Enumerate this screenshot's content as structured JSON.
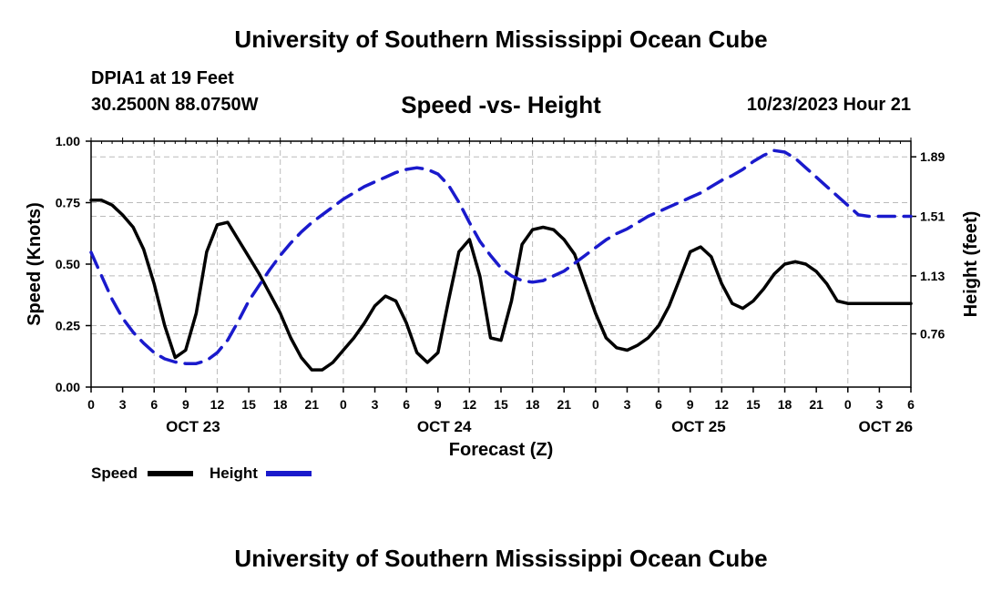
{
  "header": {
    "title": "University of Southern Mississippi Ocean Cube",
    "station": "DPIA1 at 19 Feet",
    "coords": "30.2500N  88.0750W",
    "subtitle": "Speed -vs- Height",
    "datetime": "10/23/2023 Hour 21"
  },
  "footer": {
    "title": "University of Southern Mississippi Ocean Cube"
  },
  "chart_data": {
    "type": "line",
    "xlabel": "Forecast (Z)",
    "ylabel_left": "Speed (Knots)",
    "ylabel_right": "Height (feet)",
    "x_hours_range": [
      0,
      78
    ],
    "ylim_left": [
      0.0,
      1.0
    ],
    "ylim_right": [
      0.42,
      1.99
    ],
    "left_ticks": [
      "0.00",
      "0.25",
      "0.50",
      "0.75",
      "1.00"
    ],
    "right_ticks": [
      "0.76",
      "1.13",
      "1.51",
      "1.89"
    ],
    "x_tick_labels": [
      "0",
      "3",
      "6",
      "9",
      "12",
      "15",
      "18",
      "21",
      "0",
      "3",
      "6",
      "9",
      "12",
      "15",
      "18",
      "21",
      "0",
      "3",
      "6",
      "9",
      "12",
      "15",
      "18",
      "21",
      "0",
      "3",
      "6"
    ],
    "date_labels": [
      {
        "label": "OCT 23",
        "hour": 9.7
      },
      {
        "label": "OCT 24",
        "hour": 33.6
      },
      {
        "label": "OCT 25",
        "hour": 57.8
      },
      {
        "label": "OCT 26",
        "hour": 75.6
      }
    ],
    "legend": [
      {
        "name": "Speed",
        "color": "#000000",
        "style": "solid"
      },
      {
        "name": "Height",
        "color": "#1a1acc",
        "style": "dashed"
      }
    ],
    "series": [
      {
        "name": "Speed",
        "color": "#000000",
        "dashed": false,
        "axis": "left",
        "x": [
          0,
          1,
          2,
          3,
          4,
          5,
          6,
          7,
          8,
          9,
          10,
          11,
          12,
          13,
          14,
          15,
          16,
          17,
          18,
          19,
          20,
          21,
          22,
          23,
          24,
          25,
          26,
          27,
          28,
          29,
          30,
          31,
          32,
          33,
          34,
          35,
          36,
          37,
          38,
          39,
          40,
          41,
          42,
          43,
          44,
          45,
          46,
          47,
          48,
          49,
          50,
          51,
          52,
          53,
          54,
          55,
          56,
          57,
          58,
          59,
          60,
          61,
          62,
          63,
          64,
          65,
          66,
          67,
          68,
          69,
          70,
          71,
          72,
          73,
          74,
          75,
          76,
          77,
          78
        ],
        "values": [
          0.76,
          0.76,
          0.74,
          0.7,
          0.65,
          0.56,
          0.42,
          0.25,
          0.12,
          0.15,
          0.3,
          0.55,
          0.66,
          0.67,
          0.6,
          0.53,
          0.46,
          0.38,
          0.3,
          0.2,
          0.12,
          0.07,
          0.07,
          0.1,
          0.15,
          0.2,
          0.26,
          0.33,
          0.37,
          0.35,
          0.26,
          0.14,
          0.1,
          0.14,
          0.35,
          0.55,
          0.6,
          0.45,
          0.2,
          0.19,
          0.35,
          0.58,
          0.64,
          0.65,
          0.64,
          0.6,
          0.54,
          0.42,
          0.3,
          0.2,
          0.16,
          0.15,
          0.17,
          0.2,
          0.25,
          0.33,
          0.44,
          0.55,
          0.57,
          0.53,
          0.42,
          0.34,
          0.32,
          0.35,
          0.4,
          0.46,
          0.5,
          0.51,
          0.5,
          0.47,
          0.42,
          0.35,
          0.34,
          0.34,
          0.34,
          0.34,
          0.34,
          0.34,
          0.34
        ]
      },
      {
        "name": "Height",
        "color": "#1a1acc",
        "dashed": true,
        "axis": "right",
        "x": [
          0,
          1,
          2,
          3,
          4,
          5,
          6,
          7,
          8,
          9,
          10,
          11,
          12,
          13,
          14,
          15,
          16,
          17,
          18,
          19,
          20,
          21,
          22,
          23,
          24,
          25,
          26,
          27,
          28,
          29,
          30,
          31,
          32,
          33,
          34,
          35,
          36,
          37,
          38,
          39,
          40,
          41,
          42,
          43,
          44,
          45,
          46,
          47,
          48,
          49,
          50,
          51,
          52,
          53,
          54,
          55,
          56,
          57,
          58,
          59,
          60,
          61,
          62,
          63,
          64,
          65,
          66,
          67,
          68,
          69,
          70,
          71,
          72,
          73,
          74,
          75,
          76,
          77,
          78
        ],
        "values": [
          1.28,
          1.13,
          0.98,
          0.86,
          0.77,
          0.7,
          0.64,
          0.6,
          0.58,
          0.57,
          0.57,
          0.59,
          0.64,
          0.72,
          0.84,
          0.97,
          1.07,
          1.17,
          1.26,
          1.34,
          1.41,
          1.47,
          1.52,
          1.57,
          1.62,
          1.66,
          1.7,
          1.73,
          1.76,
          1.79,
          1.81,
          1.82,
          1.81,
          1.78,
          1.71,
          1.6,
          1.47,
          1.35,
          1.26,
          1.18,
          1.13,
          1.1,
          1.09,
          1.1,
          1.13,
          1.16,
          1.21,
          1.26,
          1.31,
          1.36,
          1.4,
          1.43,
          1.47,
          1.51,
          1.54,
          1.57,
          1.6,
          1.63,
          1.66,
          1.7,
          1.74,
          1.77,
          1.81,
          1.86,
          1.9,
          1.93,
          1.92,
          1.88,
          1.82,
          1.76,
          1.7,
          1.64,
          1.58,
          1.52,
          1.51,
          1.51,
          1.51,
          1.51,
          1.51
        ]
      }
    ]
  }
}
